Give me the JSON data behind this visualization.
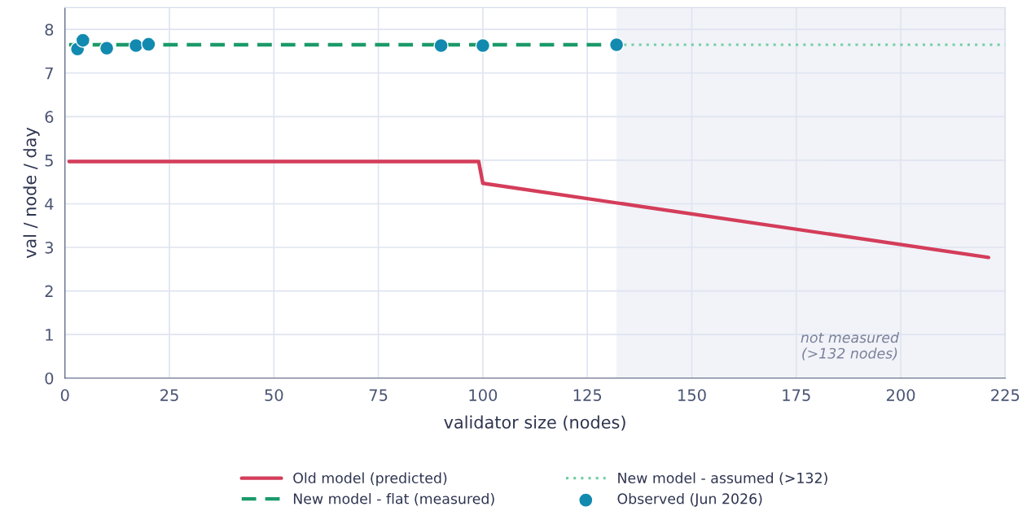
{
  "chart_data": {
    "type": "line",
    "xlabel": "validator size (nodes)",
    "ylabel": "val / node / day",
    "series": [
      {
        "name": "Old model (predicted)",
        "line_style": "solid",
        "color": "#d43d5a",
        "x": [
          1,
          99,
          100,
          221
        ],
        "values": [
          4.97,
          4.97,
          4.47,
          2.77
        ]
      },
      {
        "name": "New model - flat (measured)",
        "line_style": "dashed",
        "color": "#1b9a6a",
        "x": [
          1,
          132
        ],
        "values": [
          7.65,
          7.65
        ]
      },
      {
        "name": "New model - assumed (>132)",
        "line_style": "dotted",
        "color": "#72cfa0",
        "x": [
          132,
          225
        ],
        "values": [
          7.65,
          7.65
        ]
      },
      {
        "name": "Observed (Jun 2026)",
        "type": "scatter",
        "marker": "circle",
        "color": "#128ab0",
        "x": [
          3,
          4.3,
          10,
          17,
          20,
          90,
          100,
          132
        ],
        "values": [
          7.55,
          7.75,
          7.57,
          7.63,
          7.66,
          7.63,
          7.63,
          7.65
        ]
      }
    ],
    "bands": [
      {
        "axis": "x",
        "from": 132,
        "to": 225,
        "label": "not measured\n(>132 nodes)",
        "color": "#f1f3f8"
      }
    ],
    "xlim": [
      0,
      225
    ],
    "xticks": [
      0,
      25,
      50,
      75,
      100,
      125,
      150,
      175,
      200,
      225
    ],
    "ylim": [
      0,
      8.5
    ],
    "yticks": [
      0,
      1,
      2,
      3,
      4,
      5,
      6,
      7,
      8
    ],
    "grid": true,
    "legend": "bottom"
  }
}
